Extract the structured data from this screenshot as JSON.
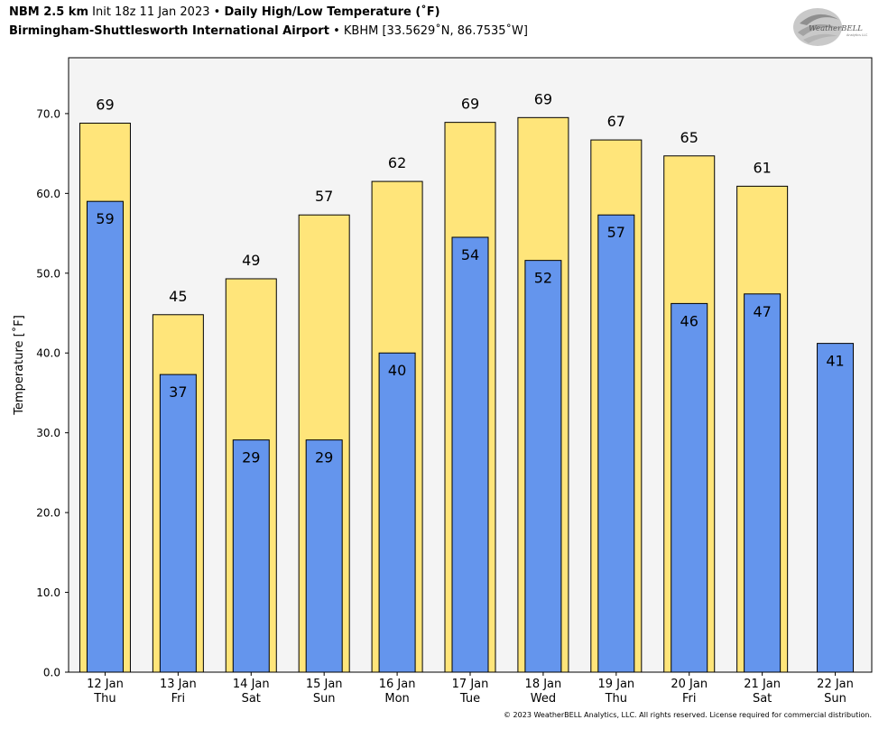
{
  "header": {
    "model": "NBM 2.5 km",
    "init": "Init 18z 11 Jan 2023",
    "sep": "•",
    "product": "Daily High/Low Temperature (˚F)",
    "station": "Birmingham-Shuttlesworth International Airport",
    "station_meta": "KBHM [33.5629˚N, 86.7535˚W]"
  },
  "logo": {
    "text_main": "WeatherBELL",
    "text_sub": "Analytics LLC",
    "color": "#8a8a8a"
  },
  "copyright": "© 2023 WeatherBELL Analytics, LLC. All rights reserved. License required for commercial distribution.",
  "chart_data": {
    "type": "bar",
    "ylabel": "Temperature [˚F]",
    "xlabel": "",
    "ylim": [
      0,
      77
    ],
    "yticks": [
      "0.0",
      "10.0",
      "20.0",
      "30.0",
      "40.0",
      "50.0",
      "60.0",
      "70.0"
    ],
    "ytick_values": [
      0,
      10,
      20,
      30,
      40,
      50,
      60,
      70
    ],
    "grid": false,
    "categories": [
      {
        "date": "12 Jan",
        "day": "Thu"
      },
      {
        "date": "13 Jan",
        "day": "Fri"
      },
      {
        "date": "14 Jan",
        "day": "Sat"
      },
      {
        "date": "15 Jan",
        "day": "Sun"
      },
      {
        "date": "16 Jan",
        "day": "Mon"
      },
      {
        "date": "17 Jan",
        "day": "Tue"
      },
      {
        "date": "18 Jan",
        "day": "Wed"
      },
      {
        "date": "19 Jan",
        "day": "Thu"
      },
      {
        "date": "20 Jan",
        "day": "Fri"
      },
      {
        "date": "21 Jan",
        "day": "Sat"
      },
      {
        "date": "22 Jan",
        "day": "Sun"
      }
    ],
    "series": [
      {
        "role": "high",
        "color": "#ffe57a",
        "values": [
          68.8,
          44.8,
          49.3,
          57.3,
          61.5,
          68.9,
          69.5,
          66.7,
          64.7,
          60.9,
          null
        ],
        "labels": [
          "69",
          "45",
          "49",
          "57",
          "62",
          "69",
          "69",
          "67",
          "65",
          "61",
          null
        ]
      },
      {
        "role": "low",
        "color": "#6495ed",
        "values": [
          59.0,
          37.3,
          29.1,
          29.1,
          40.0,
          54.5,
          51.6,
          57.3,
          46.2,
          47.4,
          41.2
        ],
        "labels": [
          "59",
          "37",
          "29",
          "29",
          "40",
          "54",
          "52",
          "57",
          "46",
          "47",
          "41"
        ]
      }
    ],
    "plot_background": "#f4f4f4"
  }
}
